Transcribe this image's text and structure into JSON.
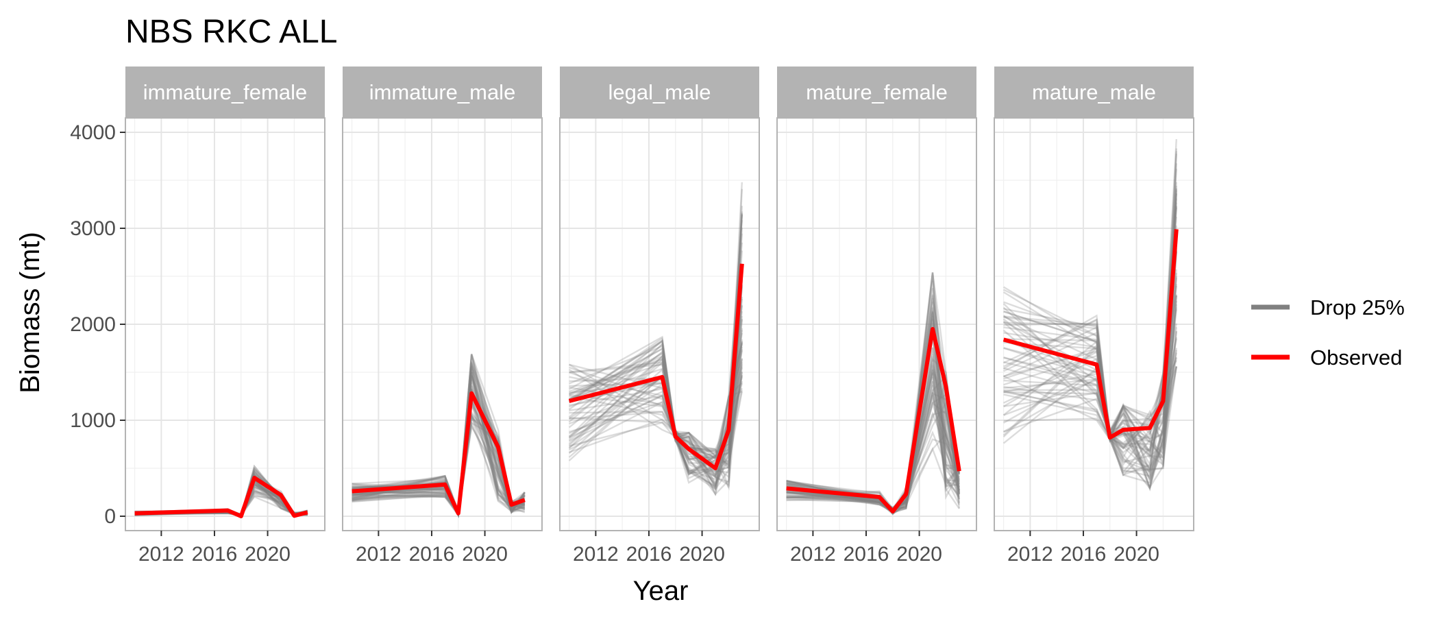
{
  "chart_data": {
    "type": "line",
    "title": "NBS RKC ALL",
    "xlabel": "Year",
    "ylabel": "Biomass (mt)",
    "ylim": [
      -150,
      4150
    ],
    "xlim": [
      2009.3,
      2024.3
    ],
    "x_ticks": [
      2012,
      2016,
      2020
    ],
    "x_tick_labels": [
      "2012",
      "2016",
      "2020"
    ],
    "y_ticks": [
      0,
      1000,
      2000,
      3000,
      4000
    ],
    "y_tick_labels": [
      "0",
      "1000",
      "2000",
      "3000",
      "4000"
    ],
    "grid": true,
    "legend_position": "right",
    "legend": [
      {
        "label": "Drop 25%",
        "color": "#808080"
      },
      {
        "label": "Observed",
        "color": "#ff0000"
      }
    ],
    "colors": {
      "drop": "#808080",
      "observed": "#ff0000",
      "strip_bg": "#b3b3b3",
      "grid": "#e5e5e5",
      "panel_border": "#b3b3b3"
    },
    "x": [
      2010,
      2017,
      2018,
      2019,
      2021,
      2022,
      2023
    ],
    "panels": [
      {
        "facet": "immature_female",
        "observed": [
          30,
          60,
          0,
          400,
          220,
          5,
          40
        ],
        "drop_25_min": [
          10,
          30,
          0,
          200,
          80,
          0,
          10
        ],
        "drop_25_max": [
          50,
          75,
          20,
          520,
          260,
          40,
          60
        ]
      },
      {
        "facet": "immature_male",
        "observed": [
          260,
          330,
          30,
          1280,
          720,
          120,
          170
        ],
        "drop_25_min": [
          150,
          200,
          10,
          900,
          120,
          40,
          40
        ],
        "drop_25_max": [
          340,
          420,
          60,
          1690,
          900,
          160,
          250
        ]
      },
      {
        "facet": "legal_male",
        "observed": [
          1200,
          1450,
          830,
          700,
          500,
          900,
          2630
        ],
        "drop_25_min": [
          550,
          900,
          780,
          350,
          230,
          300,
          1300
        ],
        "drop_25_max": [
          1580,
          1900,
          900,
          870,
          700,
          1250,
          3480
        ]
      },
      {
        "facet": "mature_female",
        "observed": [
          290,
          200,
          50,
          230,
          1950,
          1350,
          470
        ],
        "drop_25_min": [
          160,
          120,
          20,
          80,
          700,
          200,
          80
        ],
        "drop_25_max": [
          370,
          260,
          90,
          300,
          2540,
          1500,
          520
        ]
      },
      {
        "facet": "mature_male",
        "observed": [
          1840,
          1580,
          820,
          900,
          920,
          1200,
          2990
        ],
        "drop_25_min": [
          760,
          1000,
          780,
          430,
          290,
          500,
          1560
        ],
        "drop_25_max": [
          2410,
          2090,
          900,
          1160,
          1100,
          1500,
          3950
        ]
      }
    ]
  }
}
